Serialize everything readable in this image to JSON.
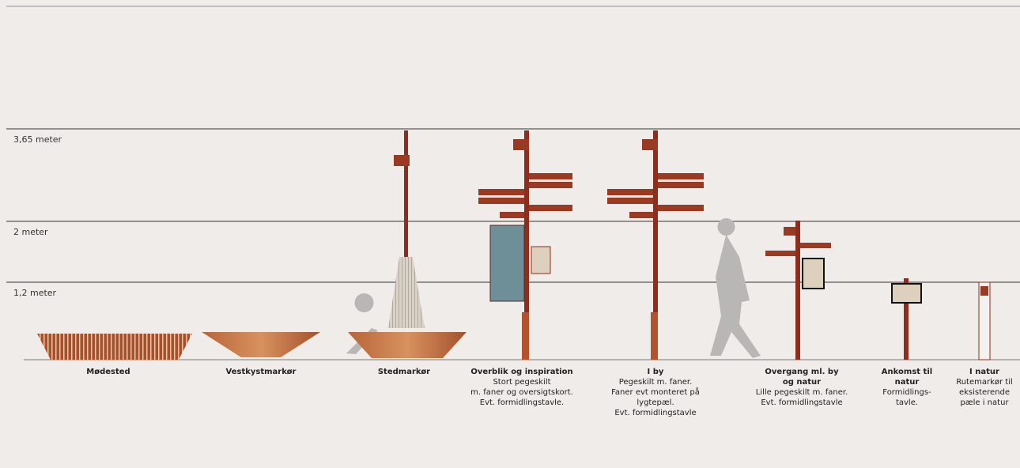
{
  "height_labels": [
    "3,65 meter",
    "2 meter",
    "1,2 meter"
  ],
  "items": [
    {
      "title": [
        "Mødested"
      ],
      "description": []
    },
    {
      "title": [
        "Vestkystmarkør"
      ],
      "description": []
    },
    {
      "title": [
        "Stedmarkør"
      ],
      "description": []
    },
    {
      "title": [
        "Overblik og inspiration"
      ],
      "description": [
        "Stort pegeskilt",
        "m. faner og oversigtskort.",
        "Evt. formidlingstavle."
      ]
    },
    {
      "title": [
        "I by"
      ],
      "description": [
        "Pegeskilt m. faner.",
        "Faner evt monteret på",
        "lygtepæl.",
        "Evt. formidlingstavle"
      ]
    },
    {
      "title": [
        "Overgang ml. by",
        "og natur"
      ],
      "description": [
        "Lille pegeskilt m. faner.",
        "Evt. formidlingstavle"
      ]
    },
    {
      "title": [
        "Ankomst til",
        "natur"
      ],
      "description": [
        "Formidlings-",
        "tavle."
      ]
    },
    {
      "title": [
        "I natur"
      ],
      "description": [
        "Rutemarkør til",
        "eksisterende",
        "pæle i natur"
      ]
    }
  ]
}
